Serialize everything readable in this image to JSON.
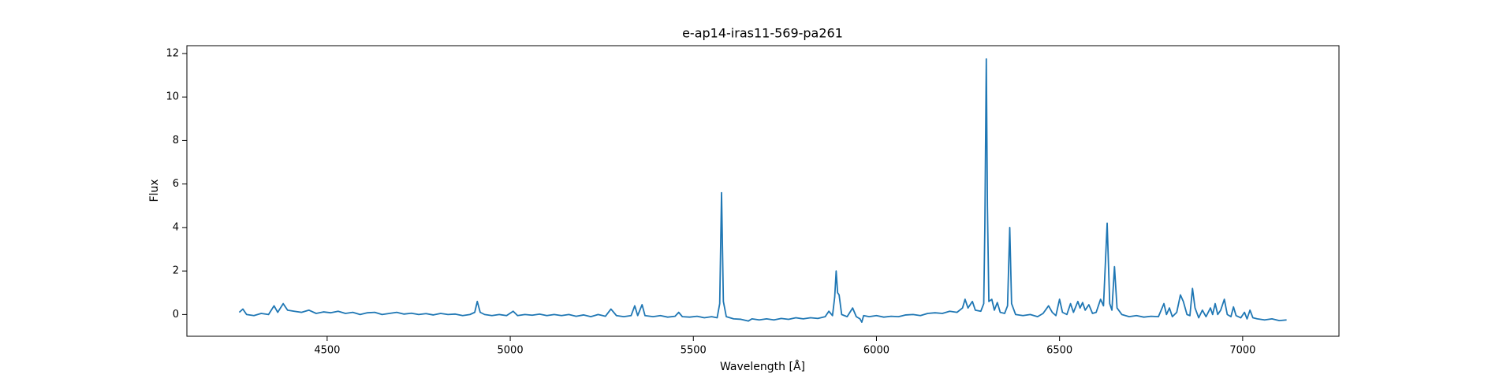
{
  "chart_data": {
    "type": "line",
    "title": "e-ap14-iras11-569-pa261",
    "xlabel": "Wavelength [Å]",
    "ylabel": "Flux",
    "color": "#1f77b4",
    "xlim": [
      4117,
      7263
    ],
    "ylim": [
      -1.0,
      12.36
    ],
    "xticks": [
      4500,
      5000,
      5500,
      6000,
      6500,
      7000
    ],
    "yticks": [
      0,
      2,
      4,
      6,
      8,
      10,
      12
    ],
    "grid": false,
    "x": [
      4260,
      4270,
      4280,
      4300,
      4320,
      4340,
      4355,
      4365,
      4380,
      4392,
      4410,
      4430,
      4450,
      4470,
      4490,
      4510,
      4530,
      4550,
      4570,
      4590,
      4610,
      4630,
      4650,
      4670,
      4690,
      4710,
      4730,
      4750,
      4770,
      4790,
      4810,
      4830,
      4850,
      4870,
      4890,
      4903,
      4910,
      4918,
      4930,
      4950,
      4970,
      4990,
      5008,
      5020,
      5040,
      5060,
      5080,
      5100,
      5120,
      5140,
      5160,
      5180,
      5200,
      5220,
      5240,
      5260,
      5275,
      5290,
      5310,
      5330,
      5340,
      5348,
      5360,
      5368,
      5390,
      5410,
      5430,
      5450,
      5460,
      5470,
      5490,
      5510,
      5530,
      5550,
      5565,
      5572,
      5577,
      5582,
      5590,
      5610,
      5630,
      5650,
      5660,
      5680,
      5700,
      5720,
      5740,
      5760,
      5780,
      5800,
      5820,
      5840,
      5860,
      5870,
      5880,
      5886,
      5890,
      5894,
      5898,
      5905,
      5920,
      5935,
      5945,
      5955,
      5960,
      5965,
      5980,
      6000,
      6020,
      6040,
      6060,
      6080,
      6100,
      6120,
      6140,
      6160,
      6180,
      6200,
      6220,
      6235,
      6242,
      6250,
      6262,
      6270,
      6285,
      6293,
      6296,
      6300,
      6303,
      6307,
      6315,
      6322,
      6330,
      6338,
      6350,
      6358,
      6364,
      6369,
      6380,
      6400,
      6420,
      6440,
      6455,
      6470,
      6480,
      6490,
      6500,
      6508,
      6520,
      6530,
      6538,
      6550,
      6556,
      6563,
      6570,
      6580,
      6590,
      6600,
      6612,
      6620,
      6630,
      6637,
      6643,
      6650,
      6657,
      6670,
      6690,
      6710,
      6730,
      6750,
      6770,
      6785,
      6792,
      6800,
      6808,
      6820,
      6830,
      6838,
      6848,
      6856,
      6863,
      6870,
      6880,
      6890,
      6900,
      6912,
      6918,
      6925,
      6932,
      6940,
      6950,
      6958,
      6968,
      6975,
      6982,
      6995,
      7005,
      7012,
      7020,
      7028,
      7040,
      7060,
      7080,
      7100,
      7120
    ],
    "values": [
      0.1,
      0.25,
      0.0,
      -0.05,
      0.05,
      0.0,
      0.4,
      0.1,
      0.5,
      0.2,
      0.15,
      0.1,
      0.2,
      0.05,
      0.12,
      0.08,
      0.15,
      0.05,
      0.1,
      0.0,
      0.08,
      0.1,
      0.0,
      0.05,
      0.1,
      0.02,
      0.06,
      0.0,
      0.04,
      -0.02,
      0.05,
      0.0,
      0.02,
      -0.05,
      0.0,
      0.1,
      0.6,
      0.1,
      0.0,
      -0.05,
      0.0,
      -0.05,
      0.15,
      -0.05,
      0.0,
      -0.03,
      0.02,
      -0.05,
      0.0,
      -0.05,
      0.0,
      -0.08,
      -0.02,
      -0.1,
      0.0,
      -0.08,
      0.25,
      -0.05,
      -0.1,
      -0.05,
      0.4,
      -0.05,
      0.45,
      -0.05,
      -0.1,
      -0.05,
      -0.12,
      -0.08,
      0.1,
      -0.1,
      -0.12,
      -0.08,
      -0.15,
      -0.1,
      -0.15,
      0.5,
      5.6,
      0.6,
      -0.1,
      -0.2,
      -0.22,
      -0.3,
      -0.2,
      -0.25,
      -0.2,
      -0.25,
      -0.18,
      -0.22,
      -0.15,
      -0.2,
      -0.15,
      -0.18,
      -0.1,
      0.15,
      -0.05,
      0.8,
      2.0,
      1.0,
      0.9,
      0.0,
      -0.1,
      0.3,
      -0.1,
      -0.2,
      -0.35,
      -0.05,
      -0.1,
      -0.05,
      -0.12,
      -0.08,
      -0.1,
      -0.02,
      0.0,
      -0.05,
      0.05,
      0.08,
      0.05,
      0.15,
      0.1,
      0.3,
      0.7,
      0.3,
      0.6,
      0.2,
      0.15,
      0.5,
      4.0,
      11.75,
      5.0,
      0.6,
      0.7,
      0.2,
      0.55,
      0.1,
      0.05,
      0.4,
      4.0,
      0.5,
      0.0,
      -0.05,
      0.0,
      -0.1,
      0.05,
      0.4,
      0.1,
      -0.05,
      0.7,
      0.1,
      0.0,
      0.5,
      0.1,
      0.6,
      0.3,
      0.55,
      0.2,
      0.45,
      0.05,
      0.1,
      0.7,
      0.4,
      4.2,
      0.5,
      0.2,
      2.2,
      0.3,
      0.0,
      -0.1,
      -0.05,
      -0.12,
      -0.08,
      -0.1,
      0.5,
      0.0,
      0.3,
      -0.1,
      0.1,
      0.9,
      0.6,
      0.0,
      -0.05,
      1.2,
      0.3,
      -0.15,
      0.2,
      -0.1,
      0.3,
      0.0,
      0.5,
      0.0,
      0.2,
      0.7,
      0.0,
      -0.1,
      0.35,
      -0.05,
      -0.15,
      0.1,
      -0.2,
      0.2,
      -0.15,
      -0.2,
      -0.25,
      -0.2,
      -0.28,
      -0.25
    ]
  }
}
